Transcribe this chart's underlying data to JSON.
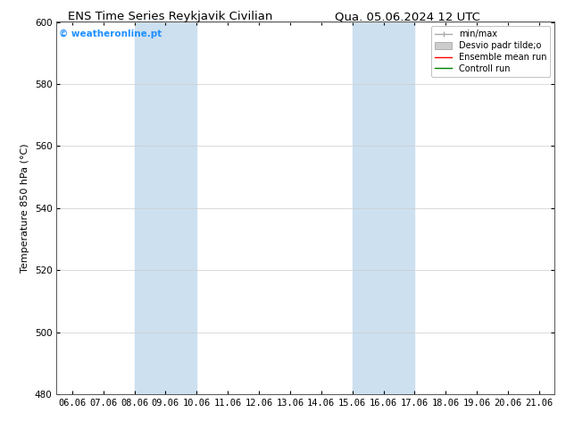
{
  "title_left": "ENS Time Series Reykjavik Civilian",
  "title_right": "Qua. 05.06.2024 12 UTC",
  "ylabel": "Temperature 850 hPa (°C)",
  "ylim": [
    480,
    600
  ],
  "yticks": [
    480,
    500,
    520,
    540,
    560,
    580,
    600
  ],
  "xtick_labels": [
    "06.06",
    "07.06",
    "08.06",
    "09.06",
    "10.06",
    "11.06",
    "12.06",
    "13.06",
    "14.06",
    "15.06",
    "16.06",
    "17.06",
    "18.06",
    "19.06",
    "20.06",
    "21.06"
  ],
  "xtick_values": [
    0,
    1,
    2,
    3,
    4,
    5,
    6,
    7,
    8,
    9,
    10,
    11,
    12,
    13,
    14,
    15
  ],
  "shaded_bands": [
    {
      "x_start": 2,
      "x_end": 4,
      "color": "#cce0f0"
    },
    {
      "x_start": 9,
      "x_end": 11,
      "color": "#cce0f0"
    }
  ],
  "watermark_text": "© weatheronline.pt",
  "watermark_color": "#1e90ff",
  "legend_entries": [
    {
      "label": "min/max",
      "color": "#aaaaaa",
      "lw": 1.0,
      "style": "minmax"
    },
    {
      "label": "Desvio padr tilde;o",
      "color": "#cccccc",
      "lw": 6,
      "style": "band"
    },
    {
      "label": "Ensemble mean run",
      "color": "red",
      "lw": 1.0,
      "style": "line"
    },
    {
      "label": "Controll run",
      "color": "green",
      "lw": 1.0,
      "style": "line"
    }
  ],
  "bg_color": "#ffffff",
  "plot_bg_color": "#ffffff",
  "grid_color": "#cccccc",
  "border_color": "#555555",
  "title_fontsize": 9.5,
  "tick_fontsize": 7.5,
  "ylabel_fontsize": 8,
  "legend_fontsize": 7,
  "watermark_fontsize": 7.5
}
